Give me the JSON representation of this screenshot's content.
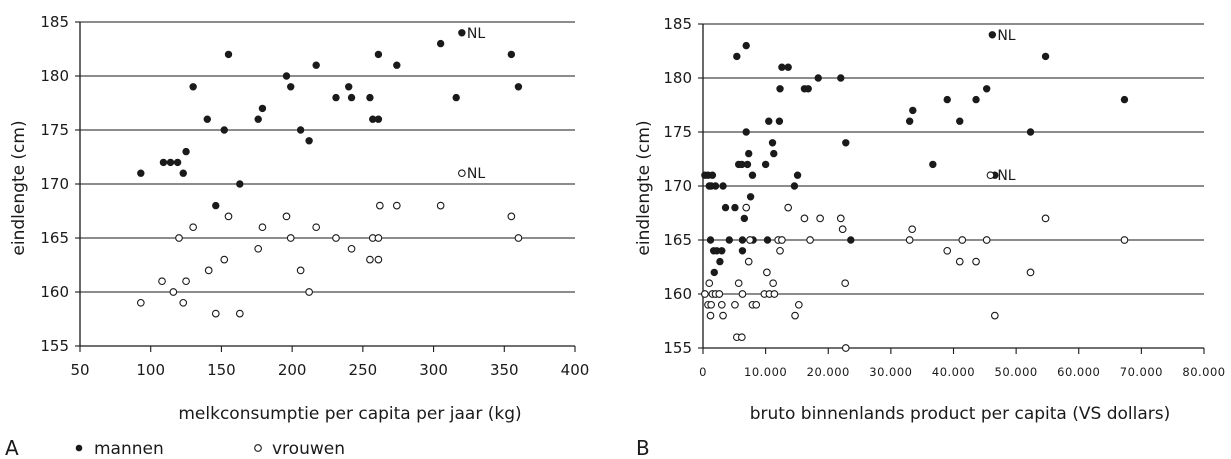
{
  "figure": {
    "legend": {
      "men_label": "mannen",
      "women_label": "vrouwen"
    },
    "colors": {
      "ink": "#1a1a1a",
      "background": "#ffffff"
    }
  },
  "chart_data": [
    {
      "panel": "A",
      "type": "scatter",
      "xlabel": "melkconsumptie per capita per jaar (kg)",
      "ylabel": "eindlengte (cm)",
      "xlim": [
        50,
        400
      ],
      "ylim": [
        155,
        185
      ],
      "x_ticks": [
        "50",
        "100",
        "150",
        "200",
        "250",
        "300",
        "350",
        "400"
      ],
      "y_ticks": [
        "155",
        "160",
        "165",
        "170",
        "175",
        "180",
        "185"
      ],
      "horizontal_gridlines_at": [
        160,
        165,
        170,
        175,
        180,
        185
      ],
      "series": [
        {
          "name": "mannen",
          "marker": "filled",
          "points": [
            [
              93,
              171
            ],
            [
              109,
              172
            ],
            [
              114,
              172
            ],
            [
              119,
              172
            ],
            [
              123,
              171
            ],
            [
              125,
              173
            ],
            [
              130,
              179
            ],
            [
              140,
              176
            ],
            [
              146,
              168
            ],
            [
              152,
              175
            ],
            [
              155,
              182
            ],
            [
              176,
              176
            ],
            [
              179,
              177
            ],
            [
              196,
              180
            ],
            [
              199,
              179
            ],
            [
              206,
              175
            ],
            [
              212,
              174
            ],
            [
              217,
              181
            ],
            [
              231,
              178
            ],
            [
              240,
              179
            ],
            [
              242,
              178
            ],
            [
              255,
              178
            ],
            [
              257,
              176
            ],
            [
              261,
              182
            ],
            [
              261,
              176
            ],
            [
              274,
              181
            ],
            [
              305,
              183
            ],
            [
              316,
              178
            ],
            [
              320,
              184
            ],
            [
              355,
              182
            ],
            [
              360,
              179
            ],
            [
              163,
              170
            ]
          ]
        },
        {
          "name": "vrouwen",
          "marker": "open",
          "points": [
            [
              93,
              159
            ],
            [
              108,
              161
            ],
            [
              116,
              160
            ],
            [
              120,
              165
            ],
            [
              123,
              159
            ],
            [
              125,
              161
            ],
            [
              130,
              166
            ],
            [
              141,
              162
            ],
            [
              146,
              158
            ],
            [
              152,
              163
            ],
            [
              155,
              167
            ],
            [
              163,
              158
            ],
            [
              176,
              164
            ],
            [
              179,
              166
            ],
            [
              196,
              167
            ],
            [
              199,
              165
            ],
            [
              206,
              162
            ],
            [
              212,
              160
            ],
            [
              217,
              166
            ],
            [
              231,
              165
            ],
            [
              242,
              164
            ],
            [
              255,
              163
            ],
            [
              257,
              165
            ],
            [
              261,
              163
            ],
            [
              261,
              165
            ],
            [
              262,
              168
            ],
            [
              274,
              168
            ],
            [
              305,
              168
            ],
            [
              320,
              171
            ],
            [
              355,
              167
            ],
            [
              360,
              165
            ]
          ]
        }
      ],
      "annotations": [
        {
          "text": "NL",
          "series": "mannen",
          "at": [
            320,
            184
          ]
        },
        {
          "text": "NL",
          "series": "vrouwen",
          "at": [
            320,
            171
          ]
        }
      ],
      "panel_label": "A"
    },
    {
      "panel": "B",
      "type": "scatter",
      "xlabel": "bruto binnenlands product per capita (VS dollars)",
      "ylabel": "eindlengte (cm)",
      "xlim": [
        0,
        80000
      ],
      "ylim": [
        155,
        185
      ],
      "x_ticks": [
        "0",
        "10.000",
        "20.000",
        "30.000",
        "40.000",
        "50.000",
        "60.000",
        "70.000",
        "80.000"
      ],
      "y_ticks": [
        "155",
        "160",
        "165",
        "170",
        "175",
        "180",
        "185"
      ],
      "horizontal_gridlines_at": [
        160,
        165,
        170,
        175,
        180,
        185
      ],
      "series": [
        {
          "name": "mannen",
          "marker": "filled",
          "points": [
            [
              300,
              171
            ],
            [
              800,
              171
            ],
            [
              1000,
              170
            ],
            [
              1200,
              165
            ],
            [
              1300,
              170
            ],
            [
              1500,
              171
            ],
            [
              1700,
              164
            ],
            [
              1800,
              162
            ],
            [
              2000,
              170
            ],
            [
              2200,
              164
            ],
            [
              2600,
              160
            ],
            [
              2700,
              163
            ],
            [
              3000,
              164
            ],
            [
              3200,
              170
            ],
            [
              3600,
              168
            ],
            [
              4200,
              165
            ],
            [
              5100,
              168
            ],
            [
              5400,
              182
            ],
            [
              5700,
              172
            ],
            [
              6200,
              172
            ],
            [
              6300,
              164
            ],
            [
              6300,
              165
            ],
            [
              6600,
              167
            ],
            [
              6900,
              175
            ],
            [
              6900,
              183
            ],
            [
              7100,
              172
            ],
            [
              7300,
              173
            ],
            [
              7600,
              169
            ],
            [
              7900,
              171
            ],
            [
              8000,
              165
            ],
            [
              10000,
              172
            ],
            [
              10300,
              165
            ],
            [
              10500,
              176
            ],
            [
              11100,
              174
            ],
            [
              11300,
              173
            ],
            [
              12200,
              176
            ],
            [
              12300,
              179
            ],
            [
              12600,
              181
            ],
            [
              13600,
              181
            ],
            [
              14600,
              170
            ],
            [
              15100,
              171
            ],
            [
              16200,
              179
            ],
            [
              16800,
              179
            ],
            [
              18400,
              180
            ],
            [
              22000,
              180
            ],
            [
              22300,
              166
            ],
            [
              22800,
              174
            ],
            [
              23600,
              165
            ],
            [
              33000,
              176
            ],
            [
              33500,
              177
            ],
            [
              36700,
              172
            ],
            [
              39000,
              178
            ],
            [
              41000,
              176
            ],
            [
              43600,
              178
            ],
            [
              45300,
              179
            ],
            [
              46200,
              184
            ],
            [
              46600,
              171
            ],
            [
              52300,
              175
            ],
            [
              54700,
              182
            ],
            [
              67300,
              178
            ]
          ]
        },
        {
          "name": "vrouwen",
          "marker": "open",
          "points": [
            [
              300,
              160
            ],
            [
              800,
              159
            ],
            [
              1000,
              161
            ],
            [
              1200,
              158
            ],
            [
              1300,
              159
            ],
            [
              1500,
              160
            ],
            [
              2000,
              160
            ],
            [
              2600,
              160
            ],
            [
              3000,
              159
            ],
            [
              3200,
              158
            ],
            [
              5100,
              159
            ],
            [
              5400,
              156
            ],
            [
              5700,
              161
            ],
            [
              6200,
              156
            ],
            [
              6300,
              160
            ],
            [
              6900,
              168
            ],
            [
              7300,
              163
            ],
            [
              7500,
              165
            ],
            [
              7900,
              159
            ],
            [
              8500,
              159
            ],
            [
              9800,
              160
            ],
            [
              10200,
              162
            ],
            [
              10600,
              160
            ],
            [
              11200,
              161
            ],
            [
              11400,
              160
            ],
            [
              12000,
              165
            ],
            [
              12300,
              164
            ],
            [
              12600,
              165
            ],
            [
              13600,
              168
            ],
            [
              14700,
              158
            ],
            [
              15300,
              159
            ],
            [
              16200,
              167
            ],
            [
              17100,
              165
            ],
            [
              18700,
              167
            ],
            [
              22000,
              167
            ],
            [
              22300,
              166
            ],
            [
              22700,
              161
            ],
            [
              22800,
              155
            ],
            [
              33000,
              165
            ],
            [
              33400,
              166
            ],
            [
              39000,
              164
            ],
            [
              41000,
              163
            ],
            [
              41400,
              165
            ],
            [
              43600,
              163
            ],
            [
              45300,
              165
            ],
            [
              45900,
              171
            ],
            [
              46600,
              158
            ],
            [
              52300,
              162
            ],
            [
              54700,
              167
            ],
            [
              67300,
              165
            ]
          ]
        }
      ],
      "annotations": [
        {
          "text": "NL",
          "series": "mannen",
          "at": [
            46200,
            184
          ]
        },
        {
          "text": "NL",
          "series": "vrouwen",
          "at": [
            46200,
            171
          ]
        }
      ],
      "panel_label": "B"
    }
  ]
}
